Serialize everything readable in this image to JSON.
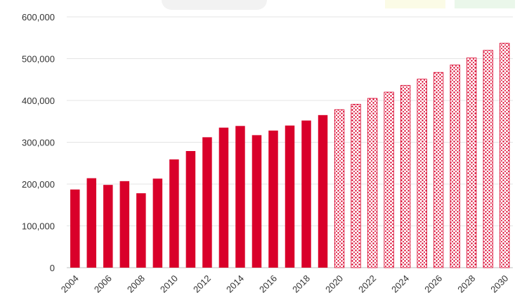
{
  "chart_data": {
    "type": "bar",
    "title": "",
    "xlabel": "",
    "ylabel": "",
    "ylim": [
      0,
      600000
    ],
    "yticks": [
      0,
      100000,
      200000,
      300000,
      400000,
      500000,
      600000
    ],
    "ytick_labels": [
      "0",
      "100,000",
      "200,000",
      "300,000",
      "400,000",
      "500,000",
      "600,000"
    ],
    "grid": true,
    "legend": "none",
    "categories": [
      "2004",
      "2005",
      "2006",
      "2007",
      "2008",
      "2009",
      "2010",
      "2011",
      "2012",
      "2013",
      "2014",
      "2015",
      "2016",
      "2017",
      "2018",
      "2019",
      "2020",
      "2021",
      "2022",
      "2023",
      "2024",
      "2025",
      "2026",
      "2027",
      "2028",
      "2029",
      "2030"
    ],
    "xtick_labels": [
      "2004",
      "",
      "2006",
      "",
      "2008",
      "",
      "2010",
      "",
      "2012",
      "",
      "2014",
      "",
      "2016",
      "",
      "2018",
      "",
      "2020",
      "",
      "2022",
      "",
      "2024",
      "",
      "2026",
      "",
      "2028",
      "",
      "2030"
    ],
    "series": [
      {
        "style": "solid",
        "color": "#d9002a",
        "values": [
          187000,
          214000,
          198000,
          207000,
          178000,
          213000,
          259000,
          279000,
          312000,
          335000,
          339000,
          317000,
          328000,
          340000,
          352000,
          365000,
          null,
          null,
          null,
          null,
          null,
          null,
          null,
          null,
          null,
          null,
          null
        ]
      },
      {
        "style": "patterned",
        "color": "#d9002a",
        "values": [
          null,
          null,
          null,
          null,
          null,
          null,
          null,
          null,
          null,
          null,
          null,
          null,
          null,
          null,
          null,
          null,
          378000,
          391000,
          405000,
          420000,
          436000,
          451000,
          467000,
          485000,
          502000,
          520000,
          537000
        ]
      }
    ]
  }
}
